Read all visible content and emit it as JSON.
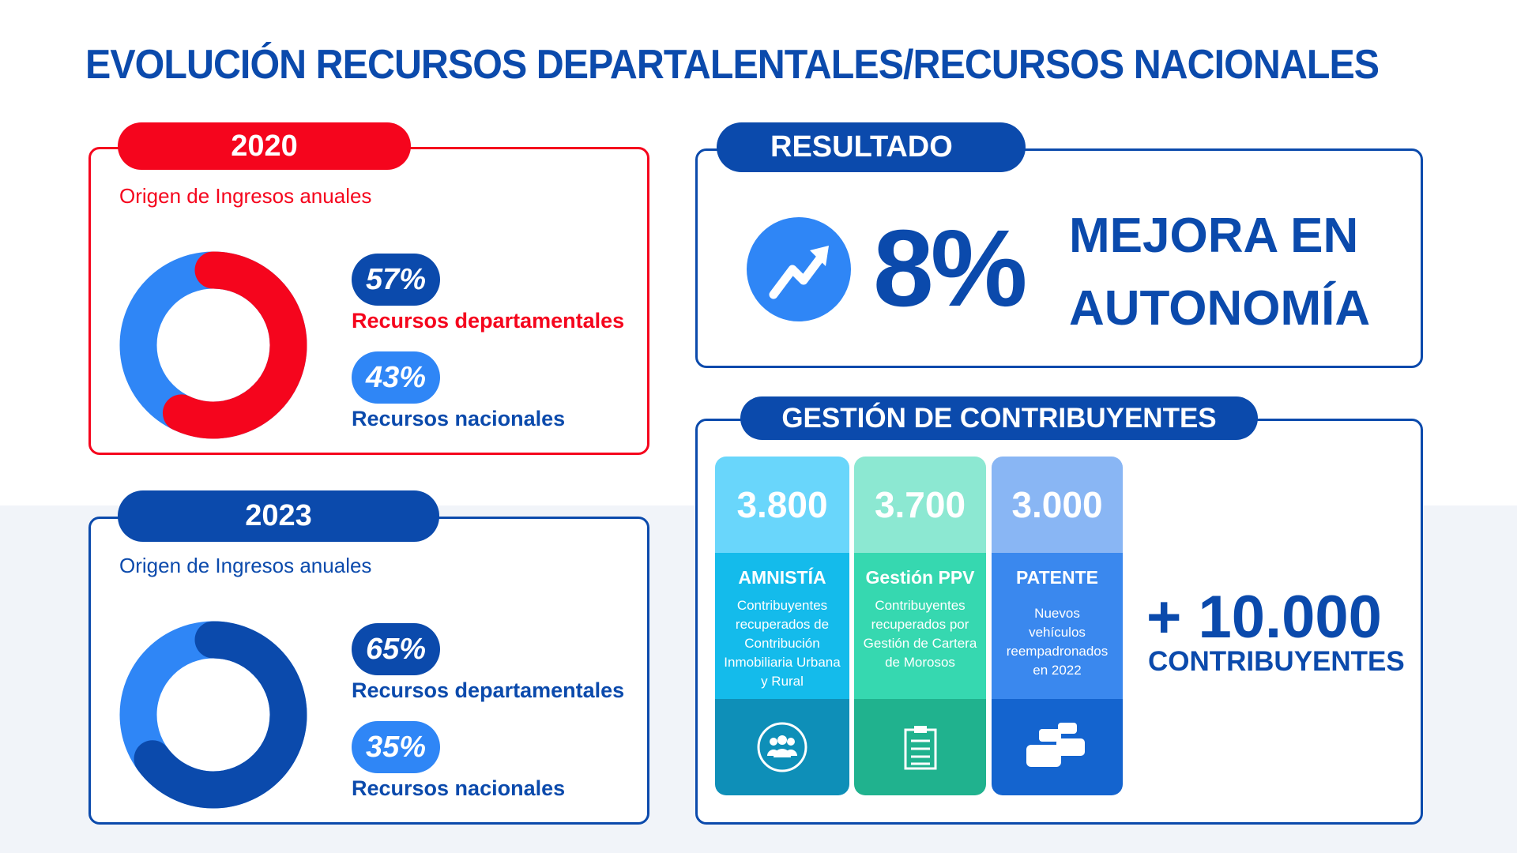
{
  "title": "EVOLUCIÓN RECURSOS DEPARTALENTALES/RECURSOS NACIONALES",
  "panels": [
    {
      "year": "2020",
      "subtitle": "Origen de Ingresos anuales",
      "dept_pct": "57%",
      "dept_label": "Recursos departamentales",
      "nat_pct": "43%",
      "nat_label": "Recursos nacionales",
      "dept_value": 57,
      "nat_value": 43,
      "accent": "#f5051d"
    },
    {
      "year": "2023",
      "subtitle": "Origen de Ingresos anuales",
      "dept_pct": "65%",
      "dept_label": "Recursos departamentales",
      "nat_pct": "35%",
      "nat_label": "Recursos nacionales",
      "dept_value": 65,
      "nat_value": 35,
      "accent": "#0b4aac"
    }
  ],
  "result": {
    "header": "RESULTADO",
    "value": "8%",
    "line1": "MEJORA EN",
    "line2": "AUTONOMÍA",
    "icon": "trending-up-icon"
  },
  "gestion": {
    "header": "GESTIÓN DE CONTRIBUYENTES",
    "cards": [
      {
        "number": "3.800",
        "title": "AMNISTÍA",
        "desc": "Contribuyentes recuperados de Contribución Inmobiliaria Urbana y Rural",
        "icon": "group-icon"
      },
      {
        "number": "3.700",
        "title": "Gestión PPV",
        "desc": "Contribuyentes recuperados por Gestión de Cartera de Morosos",
        "icon": "clipboard-icon"
      },
      {
        "number": "3.000",
        "title": "PATENTE",
        "desc": "Nuevos vehículos reempadronados en 2022",
        "icon": "cars-icon"
      }
    ],
    "total": "+ 10.000",
    "total_label": "CONTRIBUYENTES"
  },
  "colors": {
    "primary": "#0b4aac",
    "red": "#f5051d",
    "light_blue": "#2f86f6"
  }
}
